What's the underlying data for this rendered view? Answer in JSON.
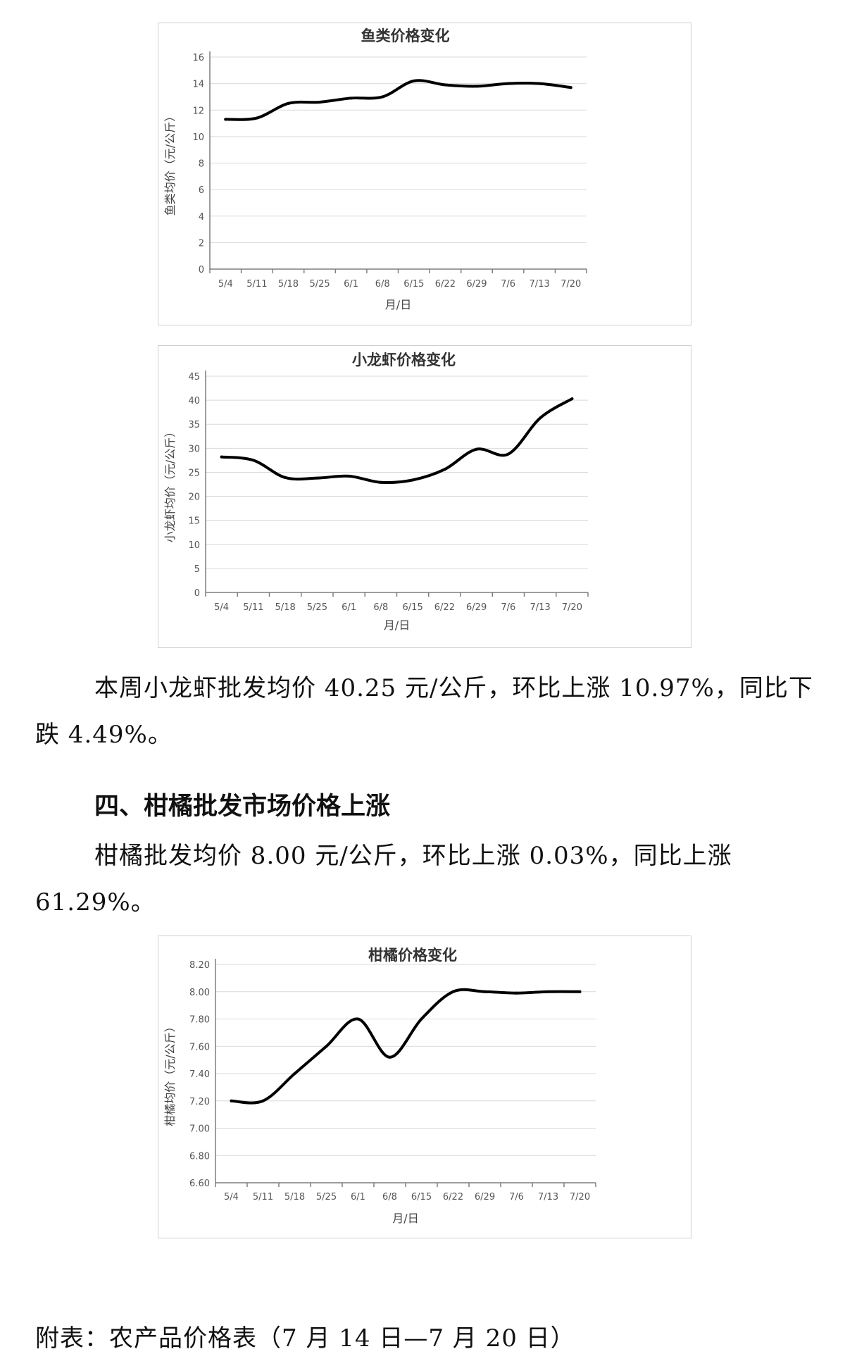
{
  "chart_data": [
    {
      "type": "line",
      "title": "鱼类价格变化",
      "xlabel": "月/日",
      "ylabel": "鱼类均价（元/公斤）",
      "categories": [
        "5/4",
        "5/11",
        "5/18",
        "5/25",
        "6/1",
        "6/8",
        "6/15",
        "6/22",
        "6/29",
        "7/6",
        "7/13",
        "7/20"
      ],
      "y_ticks": [
        "0",
        "2",
        "4",
        "6",
        "8",
        "10",
        "12",
        "14",
        "16"
      ],
      "ylim": [
        0,
        16
      ],
      "grid": true,
      "smooth": true,
      "values": [
        11.3,
        11.4,
        12.5,
        12.6,
        12.9,
        13.0,
        14.2,
        13.9,
        13.8,
        14.0,
        14.0,
        13.7
      ]
    },
    {
      "type": "line",
      "title": "小龙虾价格变化",
      "xlabel": "月/日",
      "ylabel": "小龙虾均价（元/公斤）",
      "categories": [
        "5/4",
        "5/11",
        "5/18",
        "5/25",
        "6/1",
        "6/8",
        "6/15",
        "6/22",
        "6/29",
        "7/6",
        "7/13",
        "7/20"
      ],
      "y_ticks": [
        "0",
        "5",
        "10",
        "15",
        "20",
        "25",
        "30",
        "35",
        "40",
        "45"
      ],
      "ylim": [
        0,
        45
      ],
      "grid": true,
      "smooth": true,
      "values": [
        28.2,
        27.5,
        23.9,
        23.8,
        24.2,
        22.9,
        23.4,
        25.6,
        29.8,
        28.8,
        36.3,
        40.3
      ]
    },
    {
      "type": "line",
      "title": "柑橘价格变化",
      "xlabel": "月/日",
      "ylabel": "柑橘均价（元/公斤）",
      "categories": [
        "5/4",
        "5/11",
        "5/18",
        "5/25",
        "6/1",
        "6/8",
        "6/15",
        "6/22",
        "6/29",
        "7/6",
        "7/13",
        "7/20"
      ],
      "y_ticks": [
        "6.60",
        "6.80",
        "7.00",
        "7.20",
        "7.40",
        "7.60",
        "7.80",
        "8.00",
        "8.20"
      ],
      "ylim": [
        6.6,
        8.2
      ],
      "grid": true,
      "smooth": true,
      "values": [
        7.2,
        7.2,
        7.4,
        7.6,
        7.8,
        7.52,
        7.8,
        8.0,
        8.0,
        7.99,
        8.0,
        8.0
      ]
    }
  ],
  "text": {
    "crayfish_para": "本周小龙虾批发均价 40.25 元/公斤，环比上涨 10.97%，同比下跌 4.49%。",
    "section_heading": "四、柑橘批发市场价格上涨",
    "citrus_para": "柑橘批发均价 8.00 元/公斤，环比上涨 0.03%，同比上涨 61.29%。",
    "appendix": "附表：农产品价格表（7 月 14 日—7 月 20 日）"
  }
}
